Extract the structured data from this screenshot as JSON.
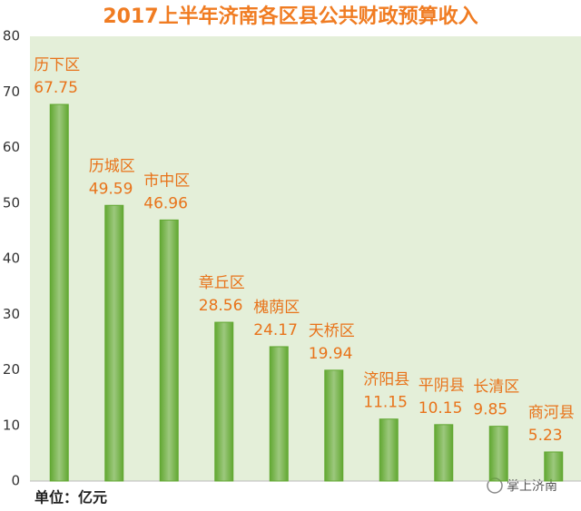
{
  "chart_data": {
    "type": "bar",
    "title": "2017上半年济南各区县公共财政预算收入",
    "categories": [
      "历下区",
      "历城区",
      "市中区",
      "章丘区",
      "槐荫区",
      "天桥区",
      "济阳县",
      "平阴县",
      "长清区",
      "商河县"
    ],
    "values": [
      67.75,
      49.59,
      46.96,
      28.56,
      24.17,
      19.94,
      11.15,
      10.15,
      9.85,
      5.23
    ],
    "color": "#62a832",
    "ylim": [
      0,
      80
    ],
    "yticks": [
      0,
      10,
      20,
      30,
      40,
      50,
      60,
      70,
      80
    ],
    "grid": false,
    "note": "单位：亿元",
    "watermark": "掌上济南"
  }
}
